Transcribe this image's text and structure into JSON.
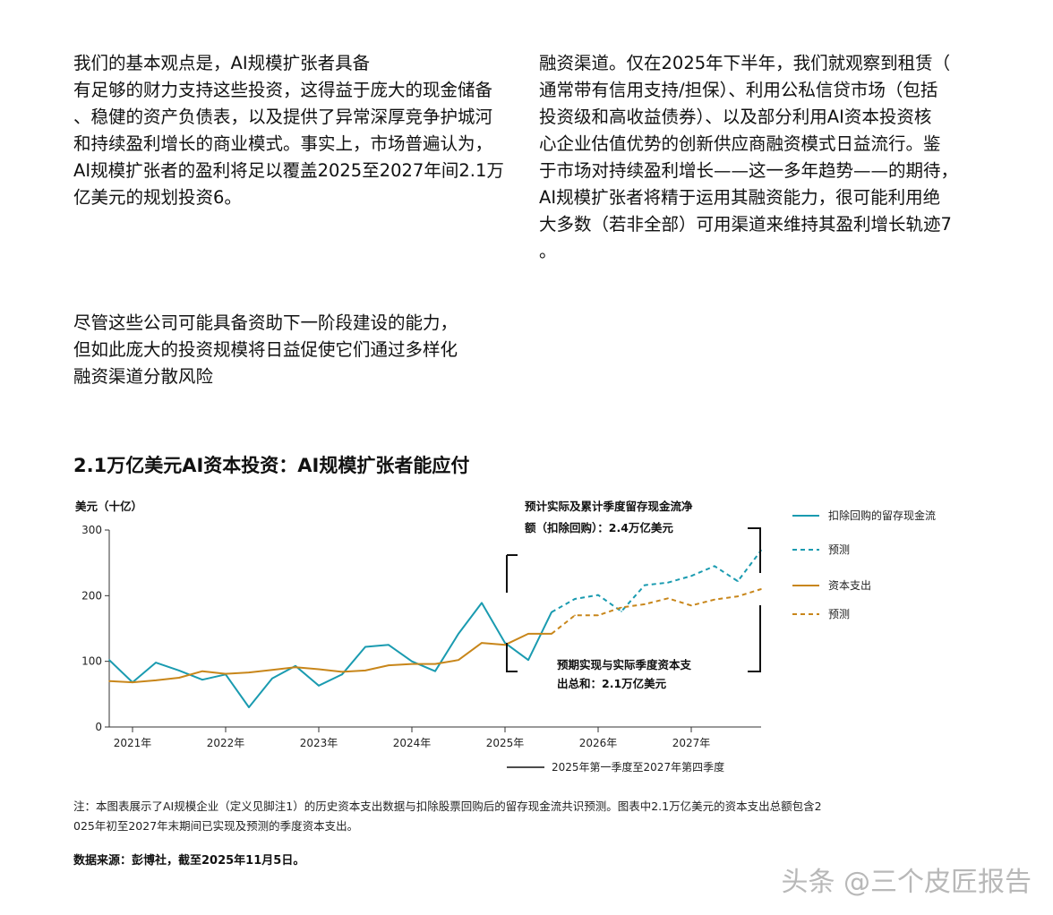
{
  "article": {
    "left_lines": [
      "我们的基本观点是，AI规模扩张者具备",
      "有足够的财力支持这些投资，这得益于庞大的现金储备",
      "、稳健的资产负债表，以及提供了异常深厚竞争护城河",
      "和持续盈利增长的商业模式。事实上，市场普遍认为，",
      "AI规模扩张者的盈利将足以覆盖2025至2027年间2.1万",
      "亿美元的规划投资6。"
    ],
    "right_lines": [
      "融资渠道。仅在2025年下半年，我们就观察到租赁（",
      "通常带有信用支持/担保）、利用公私信贷市场（包括",
      "投资级和高收益债券）、以及部分利用AI资本投资核",
      "心企业估值优势的创新供应商融资模式日益流行。鉴",
      "于市场对持续盈利增长——这一多年趋势——的期待，",
      "AI规模扩张者将精于运用其融资能力，很可能利用绝",
      "大多数（若非全部）可用渠道来维持其盈利增长轨迹7",
      "。"
    ],
    "callout_lines": [
      "尽管这些公司可能具备资助下一阶段建设的能力，",
      "但如此庞大的投资规模将日益促使它们通过多样化",
      "融资渠道分散风险"
    ]
  },
  "chart": {
    "title": "2.1万亿美元AI资本投资：AI规模扩张者能应付",
    "annotation_top": [
      "预计实际及累计季度留存现金流净",
      "额（扣除回购）：2.4万亿美元"
    ],
    "annotation_bottom": [
      "预期实现与实际季度资本支",
      "出总和：2.1万亿美元"
    ],
    "period_label": "2025年第一季度至2027年第四季度"
  },
  "chart_data": {
    "type": "line",
    "ylabel": "美元（十亿）",
    "ylim": [
      0,
      300
    ],
    "yticks": [
      0,
      100,
      200,
      300
    ],
    "xlim": [
      2020.75,
      2027.75
    ],
    "xticks": [
      2021,
      2022,
      2023,
      2024,
      2025,
      2026,
      2027
    ],
    "xtick_labels": [
      "2021年",
      "2022年",
      "2023年",
      "2024年",
      "2025年",
      "2026年",
      "2027年"
    ],
    "grid": false,
    "legend_position": "right",
    "series": [
      {
        "name": "扣除回购的留存现金流",
        "color": "#1a9bb0",
        "style": "solid",
        "x": [
          2020.75,
          2021.0,
          2021.25,
          2021.5,
          2021.75,
          2022.0,
          2022.25,
          2022.5,
          2022.75,
          2023.0,
          2023.25,
          2023.5,
          2023.75,
          2024.0,
          2024.25,
          2024.5,
          2024.75,
          2025.0,
          2025.25,
          2025.5
        ],
        "values": [
          102,
          68,
          98,
          86,
          72,
          80,
          30,
          74,
          93,
          63,
          80,
          122,
          125,
          100,
          85,
          142,
          189,
          128,
          102,
          175
        ]
      },
      {
        "name": "预测",
        "color": "#1a9bb0",
        "style": "dashed",
        "x": [
          2025.5,
          2025.75,
          2026.0,
          2026.25,
          2026.5,
          2026.75,
          2027.0,
          2027.25,
          2027.5,
          2027.75
        ],
        "values": [
          175,
          195,
          201,
          176,
          216,
          220,
          230,
          245,
          222,
          269
        ]
      },
      {
        "name": "资本支出",
        "color": "#c8861a",
        "style": "solid",
        "x": [
          2020.75,
          2021.0,
          2021.25,
          2021.5,
          2021.75,
          2022.0,
          2022.25,
          2022.5,
          2022.75,
          2023.0,
          2023.25,
          2023.5,
          2023.75,
          2024.0,
          2024.25,
          2024.5,
          2024.75,
          2025.0,
          2025.25,
          2025.5
        ],
        "values": [
          70,
          68,
          71,
          75,
          85,
          81,
          83,
          87,
          91,
          88,
          84,
          86,
          94,
          96,
          96,
          102,
          128,
          125,
          142,
          142
        ]
      },
      {
        "name": "预测",
        "color": "#c8861a",
        "style": "dashed",
        "x": [
          2025.5,
          2025.75,
          2026.0,
          2026.25,
          2026.5,
          2026.75,
          2027.0,
          2027.25,
          2027.5,
          2027.75
        ],
        "values": [
          142,
          170,
          170,
          182,
          187,
          196,
          185,
          194,
          199,
          210
        ]
      }
    ]
  },
  "footer": {
    "note_lines": [
      "注：本图表展示了AI规模企业（定义见脚注1）的历史资本支出数据与扣除股票回购后的留存现金流共识预测。图表中2.1万亿美元的资本支出总额包含2",
      "025年初至2027年末期间已实现及预测的季度资本支出。"
    ],
    "source": "数据来源：彭博社，截至2025年11月5日。",
    "watermark": "头条 @三个皮匠报告"
  }
}
